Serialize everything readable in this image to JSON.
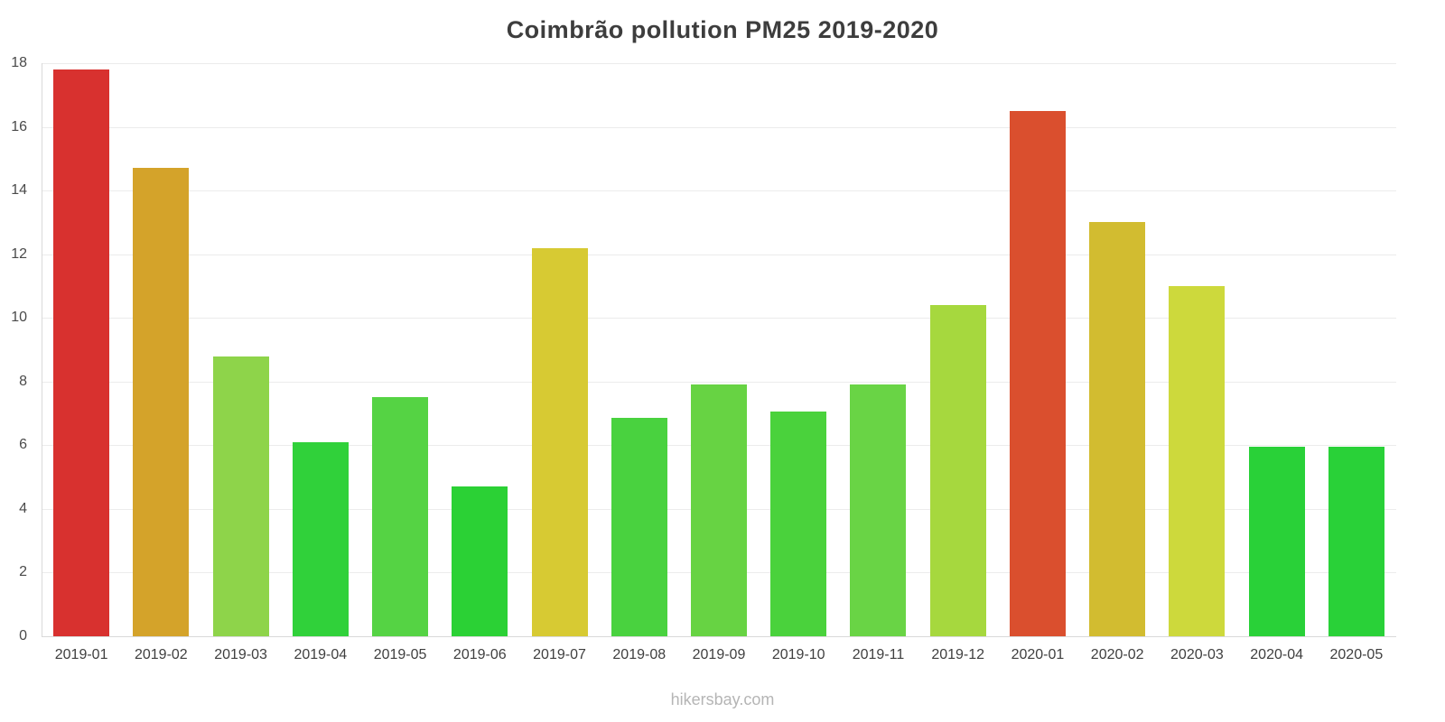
{
  "title": "Coimbrão pollution PM25 2019-2020",
  "footer": "hikersbay.com",
  "chart_data": {
    "type": "bar",
    "title": "Coimbrão pollution PM25 2019-2020",
    "xlabel": "",
    "ylabel": "",
    "ylim": [
      0,
      18
    ],
    "yticks": [
      0,
      2,
      4,
      6,
      8,
      10,
      12,
      14,
      16,
      18
    ],
    "grid": true,
    "legend": "none",
    "categories": [
      "2019-01",
      "2019-02",
      "2019-03",
      "2019-04",
      "2019-05",
      "2019-06",
      "2019-07",
      "2019-08",
      "2019-09",
      "2019-10",
      "2019-11",
      "2019-12",
      "2020-01",
      "2020-02",
      "2020-03",
      "2020-04",
      "2020-05"
    ],
    "values": [
      17.8,
      14.7,
      8.8,
      6.1,
      7.5,
      4.7,
      12.2,
      6.85,
      7.9,
      7.05,
      7.9,
      10.4,
      16.5,
      13.0,
      11.0,
      5.95,
      5.95
    ],
    "colors": [
      "#d8312f",
      "#d4a32a",
      "#8ed44a",
      "#30d13a",
      "#55d344",
      "#2bd135",
      "#d7ca33",
      "#49d23f",
      "#67d343",
      "#4ad23c",
      "#69d445",
      "#a6d83e",
      "#da4f2e",
      "#d2bc30",
      "#cdd93c",
      "#29d138",
      "#29d138"
    ]
  }
}
